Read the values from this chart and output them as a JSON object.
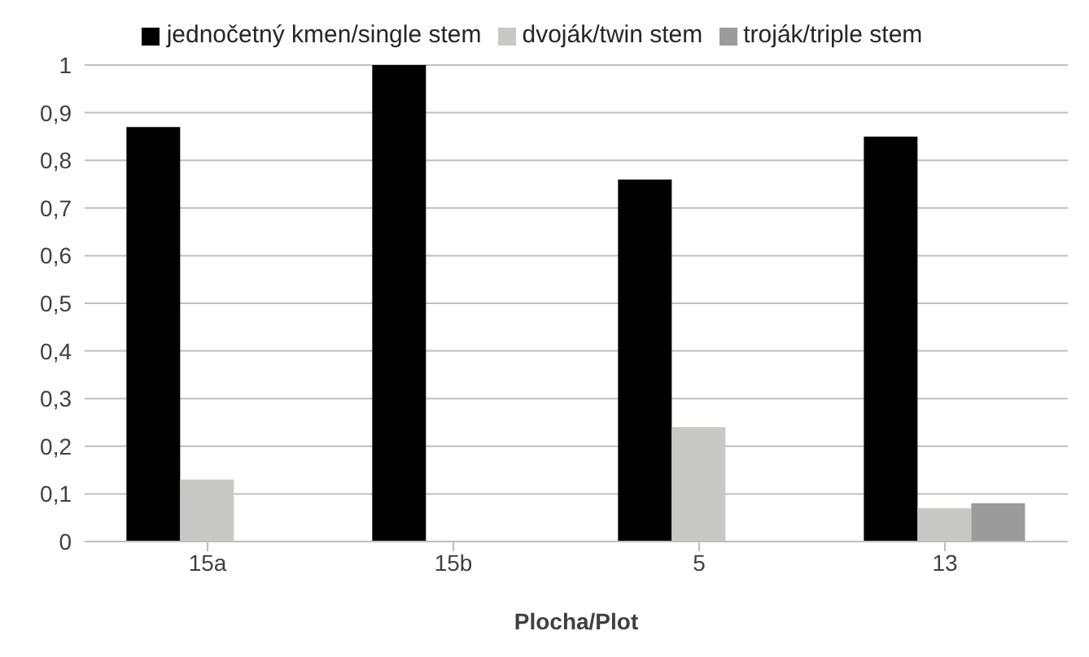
{
  "chart_data": {
    "type": "bar",
    "xlabel": "Plocha/Plot",
    "categories": [
      "15a",
      "15b",
      "5",
      "13"
    ],
    "series": [
      {
        "name": "jednočetný kmen/single stem",
        "color": "#000000",
        "values": [
          0.87,
          1,
          0.76,
          0.85
        ]
      },
      {
        "name": "dvoják/twin stem",
        "color": "#c8c8c6",
        "values": [
          0.13,
          0,
          0.24,
          0.07
        ]
      },
      {
        "name": "troják/triple stem",
        "color": "#9b9b9b",
        "values": [
          0,
          0,
          0,
          0.08
        ]
      }
    ],
    "ylim": [
      0,
      1
    ],
    "yticks": [
      0,
      {
        "value": 0.1,
        "label": "0,1"
      },
      {
        "value": 0.2,
        "label": "0,2"
      },
      {
        "value": 0.3,
        "label": "0,3"
      },
      {
        "value": 0.4,
        "label": "0,4"
      },
      {
        "value": 0.5,
        "label": "0,5"
      },
      {
        "value": 0.6,
        "label": "0,6"
      },
      {
        "value": 0.7,
        "label": "0,7"
      },
      {
        "value": 0.8,
        "label": "0,8"
      },
      {
        "value": 0.9,
        "label": "0,9"
      },
      1
    ],
    "grid": "y",
    "legend": "top"
  }
}
